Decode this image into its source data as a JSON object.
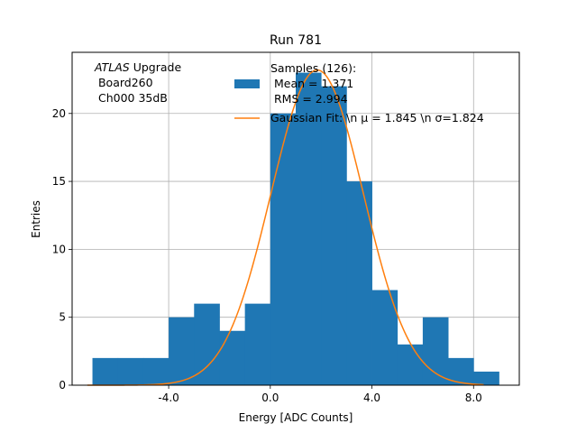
{
  "chart_data": {
    "type": "histogram",
    "title": "Run 781",
    "xlabel": "Energy [ADC Counts]",
    "ylabel": "Entries",
    "xlim": [
      -7.8,
      9.8
    ],
    "ylim": [
      0,
      24.5
    ],
    "xticks": [
      {
        "value": -4.0,
        "label": "-4.0"
      },
      {
        "value": 0.0,
        "label": "0.0"
      },
      {
        "value": 4.0,
        "label": "4.0"
      },
      {
        "value": 8.0,
        "label": "8.0"
      }
    ],
    "yticks": [
      {
        "value": 0,
        "label": "0"
      },
      {
        "value": 5,
        "label": "5"
      },
      {
        "value": 10,
        "label": "10"
      },
      {
        "value": 15,
        "label": "15"
      },
      {
        "value": 20,
        "label": "20"
      }
    ],
    "grid": true,
    "bin_edges": [
      -7,
      -6,
      -5,
      -4,
      -3,
      -2,
      -1,
      0,
      1,
      2,
      3,
      4,
      5,
      6,
      7,
      8,
      9
    ],
    "counts": [
      2,
      2,
      2,
      5,
      6,
      4,
      6,
      20,
      23,
      22,
      15,
      7,
      3,
      5,
      2,
      1
    ],
    "histogram_color": "#1f77b4",
    "fit": {
      "type": "gaussian",
      "mu": 1.845,
      "sigma": 1.824,
      "amplitude": 23.2,
      "x_range": [
        -7.2,
        8.4
      ],
      "color": "#ff7f0e"
    },
    "annotation": {
      "line1_italic": "ATLAS",
      "line1_rest": " Upgrade",
      "line2": " Board260",
      "line3": " Ch000 35dB"
    },
    "legend": {
      "placement": "top-right",
      "entries": [
        {
          "kind": "patch",
          "lines": [
            "Samples (126):",
            " Mean = 1.371",
            " RMS = 2.994"
          ]
        },
        {
          "kind": "line",
          "lines": [
            "Gaussian Fit: \\n μ = 1.845 \\n σ=1.824"
          ]
        }
      ]
    }
  }
}
